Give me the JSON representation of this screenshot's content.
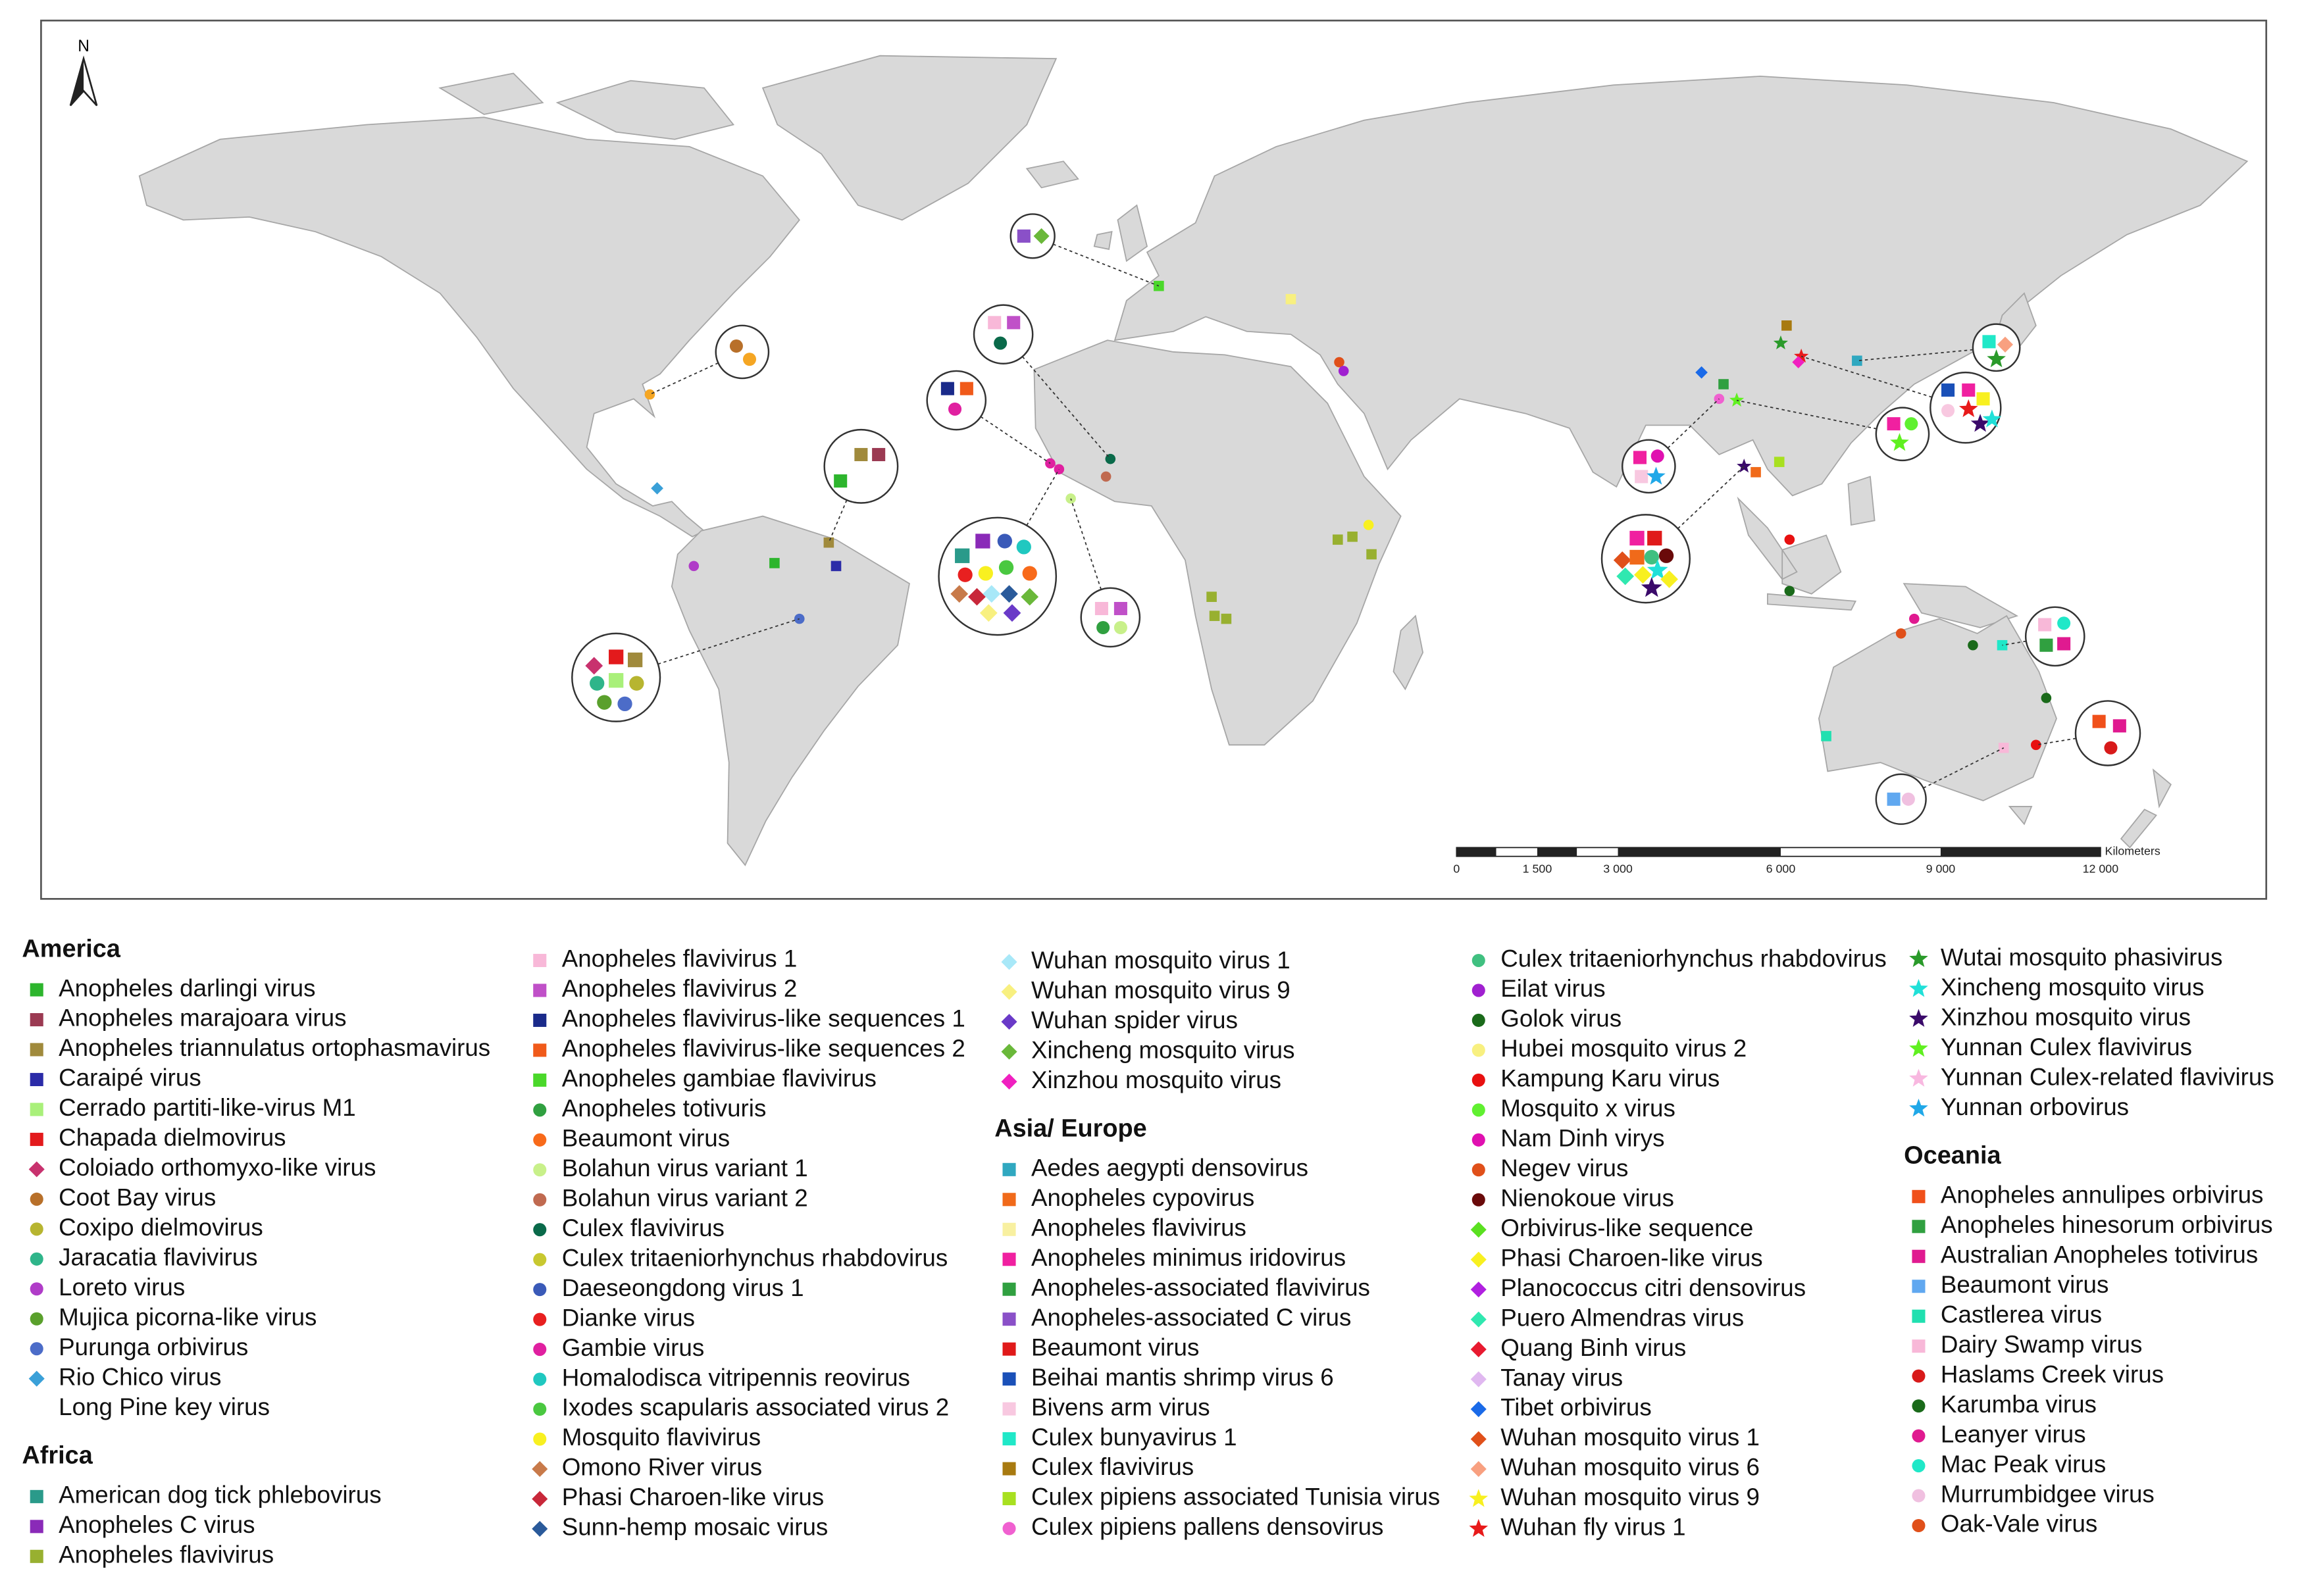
{
  "map": {
    "north_label": "N",
    "scale_bar": {
      "unit": "Kilometers",
      "labels": [
        "0",
        "1 500",
        "3 000",
        "6 000",
        "9 000",
        "12 000"
      ]
    }
  },
  "legend": {
    "sections": [
      {
        "title": "America",
        "items": [
          {
            "name": "Anopheles darlingi virus",
            "color": "#2db52d",
            "shape": "square"
          },
          {
            "name": "Anopheles marajoara virus",
            "color": "#9b3a52",
            "shape": "square"
          },
          {
            "name": "Anopheles triannulatus ortophasmavirus",
            "color": "#a08a3c",
            "shape": "square"
          },
          {
            "name": "Caraipé virus",
            "color": "#2b2ba8",
            "shape": "square"
          },
          {
            "name": "Cerrado partiti-like-virus M1",
            "color": "#a9f07a",
            "shape": "square"
          },
          {
            "name": "Chapada dielmovirus",
            "color": "#e31a1c",
            "shape": "square"
          },
          {
            "name": "Coloiado orthomyxo-like virus",
            "color": "#c8326e",
            "shape": "diamond"
          },
          {
            "name": "Coot Bay virus",
            "color": "#b8702a",
            "shape": "circle"
          },
          {
            "name": "Coxipo dielmovirus",
            "color": "#b7b530",
            "shape": "circle"
          },
          {
            "name": "Jaracatia flavivirus",
            "color": "#2fb58a",
            "shape": "circle"
          },
          {
            "name": "Loreto virus",
            "color": "#b03cc8",
            "shape": "circle"
          },
          {
            "name": "Mujica picorna-like virus",
            "color": "#5aa02c",
            "shape": "circle"
          },
          {
            "name": "Purunga orbivirus",
            "color": "#4c6cc8",
            "shape": "circle"
          },
          {
            "name": "Rio Chico virus",
            "color": "#3aa0d8",
            "shape": "diamond"
          },
          {
            "name": "Long Pine key virus"
          }
        ]
      },
      {
        "title": "Africa",
        "items": [
          {
            "name": "American dog tick phlebovirus",
            "color": "#2a9a8a",
            "shape": "square"
          },
          {
            "name": "Anopheles C virus",
            "color": "#8a2ab8",
            "shape": "square"
          },
          {
            "name": "Anopheles flavivirus",
            "color": "#98b030",
            "shape": "square"
          },
          {
            "name": "Anopheles flavivirus 1",
            "color": "#f8b8d8",
            "shape": "square"
          },
          {
            "name": "Anopheles flavivirus 2",
            "color": "#c050c8",
            "shape": "square"
          },
          {
            "name": "Anopheles flavivirus-like sequences 1",
            "color": "#1a2a8a",
            "shape": "square"
          },
          {
            "name": "Anopheles flavivirus-like sequences 2",
            "color": "#f05a1a",
            "shape": "square"
          },
          {
            "name": "Anopheles gambiae flavivirus",
            "color": "#4ad82a",
            "shape": "square"
          },
          {
            "name": "Anopheles totivuris",
            "color": "#30a040",
            "shape": "circle"
          },
          {
            "name": "Beaumont virus",
            "color": "#f86a1a",
            "shape": "circle"
          },
          {
            "name": "Bolahun virus variant 1",
            "color": "#c8f08a",
            "shape": "circle"
          },
          {
            "name": "Bolahun virus variant 2",
            "color": "#c06a50",
            "shape": "circle"
          },
          {
            "name": "Culex flavivirus",
            "color": "#0a6a4a",
            "shape": "circle"
          },
          {
            "name": "Culex tritaeniorhynchus rhabdovirus",
            "color": "#c8c830",
            "shape": "circle"
          },
          {
            "name": "Daeseongdong virus 1",
            "color": "#3a5ab8",
            "shape": "circle"
          },
          {
            "name": "Dianke virus",
            "color": "#e82020",
            "shape": "circle"
          },
          {
            "name": "Gambie virus",
            "color": "#e020a0",
            "shape": "circle"
          },
          {
            "name": "Homalodisca vitripennis reovirus",
            "color": "#20c8c0",
            "shape": "circle"
          },
          {
            "name": "Ixodes scapularis associated virus 2",
            "color": "#4ac840",
            "shape": "circle"
          },
          {
            "name": "Mosquito flavivirus",
            "color": "#f8f020",
            "shape": "circle"
          },
          {
            "name": "Omono River virus",
            "color": "#c87a4a",
            "shape": "diamond"
          },
          {
            "name": "Phasi Charoen-like virus",
            "color": "#c8283a",
            "shape": "diamond"
          },
          {
            "name": "Sunn-hemp mosaic virus",
            "color": "#2a5a9a",
            "shape": "diamond"
          },
          {
            "name": "Wuhan mosquito virus 1",
            "color": "#a8e8f8",
            "shape": "diamond"
          },
          {
            "name": "Wuhan mosquito virus 9",
            "color": "#f8f080",
            "shape": "diamond"
          },
          {
            "name": "Wuhan spider virus",
            "color": "#6a3ac8",
            "shape": "diamond"
          },
          {
            "name": "Xincheng mosquito virus",
            "color": "#6ab83a",
            "shape": "diamond"
          },
          {
            "name": "Xinzhou mosquito virus",
            "color": "#f020c0",
            "shape": "diamond"
          }
        ]
      },
      {
        "title": "Asia/ Europe",
        "items": [
          {
            "name": "Aedes aegypti densovirus",
            "color": "#30a8c0",
            "shape": "square"
          },
          {
            "name": "Anopheles cypovirus",
            "color": "#f06a1a",
            "shape": "square"
          },
          {
            "name": "Anopheles flavivirus",
            "color": "#f8f0a0",
            "shape": "square"
          },
          {
            "name": "Anopheles minimus iridovirus",
            "color": "#f020a0",
            "shape": "square"
          },
          {
            "name": "Anopheles-associated flavivirus",
            "color": "#30a040",
            "shape": "square"
          },
          {
            "name": "Anopheles-associated C virus",
            "color": "#8a50c8",
            "shape": "square"
          },
          {
            "name": "Beaumont virus",
            "color": "#e01a1a",
            "shape": "square"
          },
          {
            "name": "Beihai mantis shrimp virus 6",
            "color": "#1a50b8",
            "shape": "square"
          },
          {
            "name": "Bivens arm virus",
            "color": "#f8c8e0",
            "shape": "square"
          },
          {
            "name": "Culex bunyavirus 1",
            "color": "#20e8c8",
            "shape": "square"
          },
          {
            "name": "Culex flavivirus",
            "color": "#a87a10",
            "shape": "square"
          },
          {
            "name": "Culex pipiens associated Tunisia virus",
            "color": "#a8e020",
            "shape": "square"
          },
          {
            "name": "Culex pipiens pallens densovirus",
            "color": "#f060d0",
            "shape": "circle"
          },
          {
            "name": "Culex tritaeniorhynchus rhabdovirus",
            "color": "#40c080",
            "shape": "circle"
          },
          {
            "name": "Eilat virus",
            "color": "#a020d0",
            "shape": "circle"
          },
          {
            "name": "Golok virus",
            "color": "#1a6a1a",
            "shape": "circle"
          },
          {
            "name": "Hubei mosquito virus 2",
            "color": "#f8f080",
            "shape": "circle"
          },
          {
            "name": "Kampung Karu virus",
            "color": "#e81010",
            "shape": "circle"
          },
          {
            "name": "Mosquito x virus",
            "color": "#60f030",
            "shape": "circle"
          },
          {
            "name": "Nam Dinh virys",
            "color": "#e010b0",
            "shape": "circle"
          },
          {
            "name": "Negev virus",
            "color": "#e0501a",
            "shape": "circle"
          },
          {
            "name": "Nienokoue virus",
            "color": "#6a0a0a",
            "shape": "circle"
          },
          {
            "name": "Orbivirus-like sequence",
            "color": "#5ae020",
            "shape": "diamond"
          },
          {
            "name": "Phasi Charoen-like virus",
            "color": "#f8f020",
            "shape": "diamond"
          },
          {
            "name": "Planococcus citri densovirus",
            "color": "#b020e0",
            "shape": "diamond"
          },
          {
            "name": "Puero Almendras virus",
            "color": "#30e8b0",
            "shape": "diamond"
          },
          {
            "name": "Quang Binh virus",
            "color": "#e81a30",
            "shape": "diamond"
          },
          {
            "name": "Tanay virus",
            "color": "#e0b8f0",
            "shape": "diamond"
          },
          {
            "name": "Tibet orbivirus",
            "color": "#1a6ae8",
            "shape": "diamond"
          },
          {
            "name": "Wuhan mosquito virus 1",
            "color": "#e0501a",
            "shape": "diamond"
          },
          {
            "name": "Wuhan mosquito virus 6",
            "color": "#f8a080",
            "shape": "diamond"
          },
          {
            "name": "Wuhan mosquito virus 9",
            "color": "#f8f020",
            "shape": "star"
          },
          {
            "name": "Wuhan fly virus 1",
            "color": "#e81a1a",
            "shape": "star"
          },
          {
            "name": "Wutai mosquito phasivirus",
            "color": "#2a9a2a",
            "shape": "star"
          },
          {
            "name": "Xincheng mosquito virus",
            "color": "#20e0d8",
            "shape": "star"
          },
          {
            "name": "Xinzhou mosquito virus",
            "color": "#3a0a6a",
            "shape": "star"
          },
          {
            "name": "Yunnan Culex flavivirus",
            "color": "#60f020",
            "shape": "star"
          },
          {
            "name": "Yunnan Culex-related flavivirus",
            "color": "#f8b8e0",
            "shape": "star"
          },
          {
            "name": "Yunnan orbovirus",
            "color": "#20a8e8",
            "shape": "star"
          }
        ]
      },
      {
        "title": "Oceania",
        "items": [
          {
            "name": "Anopheles annulipes orbivirus",
            "color": "#f0501a",
            "shape": "square"
          },
          {
            "name": "Anopheles hinesorum orbivirus",
            "color": "#30a040",
            "shape": "square"
          },
          {
            "name": "Australian Anopheles totivirus",
            "color": "#e01a90",
            "shape": "square"
          },
          {
            "name": "Beaumont virus",
            "color": "#60a8f0",
            "shape": "square"
          },
          {
            "name": "Castlerea virus",
            "color": "#20e0b0",
            "shape": "square"
          },
          {
            "name": "Dairy Swamp virus",
            "color": "#f8b8d8",
            "shape": "square"
          },
          {
            "name": "Haslams Creek virus",
            "color": "#d81a1a",
            "shape": "circle"
          },
          {
            "name": "Karumba virus",
            "color": "#1a6a1a",
            "shape": "circle"
          },
          {
            "name": "Leanyer virus",
            "color": "#e01a90",
            "shape": "circle"
          },
          {
            "name": "Mac Peak virus",
            "color": "#20e8c8",
            "shape": "circle"
          },
          {
            "name": "Murrumbidgee virus",
            "color": "#f0c0e0",
            "shape": "circle"
          },
          {
            "name": "Oak-Vale virus",
            "color": "#e0501a",
            "shape": "circle"
          }
        ]
      }
    ]
  }
}
